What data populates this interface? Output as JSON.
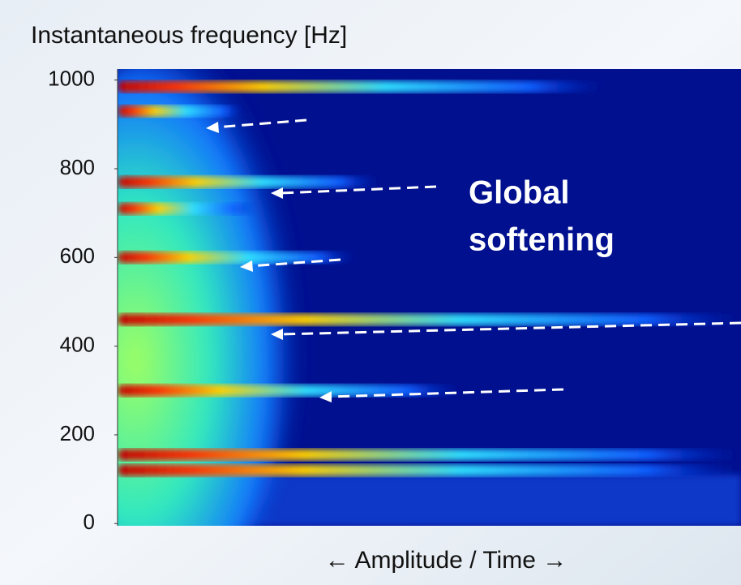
{
  "chart_data": {
    "type": "spectrogram",
    "title": "Instantaneous  frequency [Hz]",
    "x_label": "← Amplitude / Time →",
    "annotation": [
      "Global",
      "softening"
    ],
    "ylim": [
      -5,
      1025
    ],
    "yticks": [
      0,
      200,
      400,
      600,
      800,
      1000
    ],
    "xlim": [
      0,
      1
    ],
    "ridges": {
      "values": [
        985,
        930,
        770,
        710,
        600,
        460,
        300,
        155,
        120
      ],
      "extent": [
        0.78,
        0.2,
        0.42,
        0.22,
        0.38,
        1,
        0.55,
        1,
        1
      ]
    }
  }
}
